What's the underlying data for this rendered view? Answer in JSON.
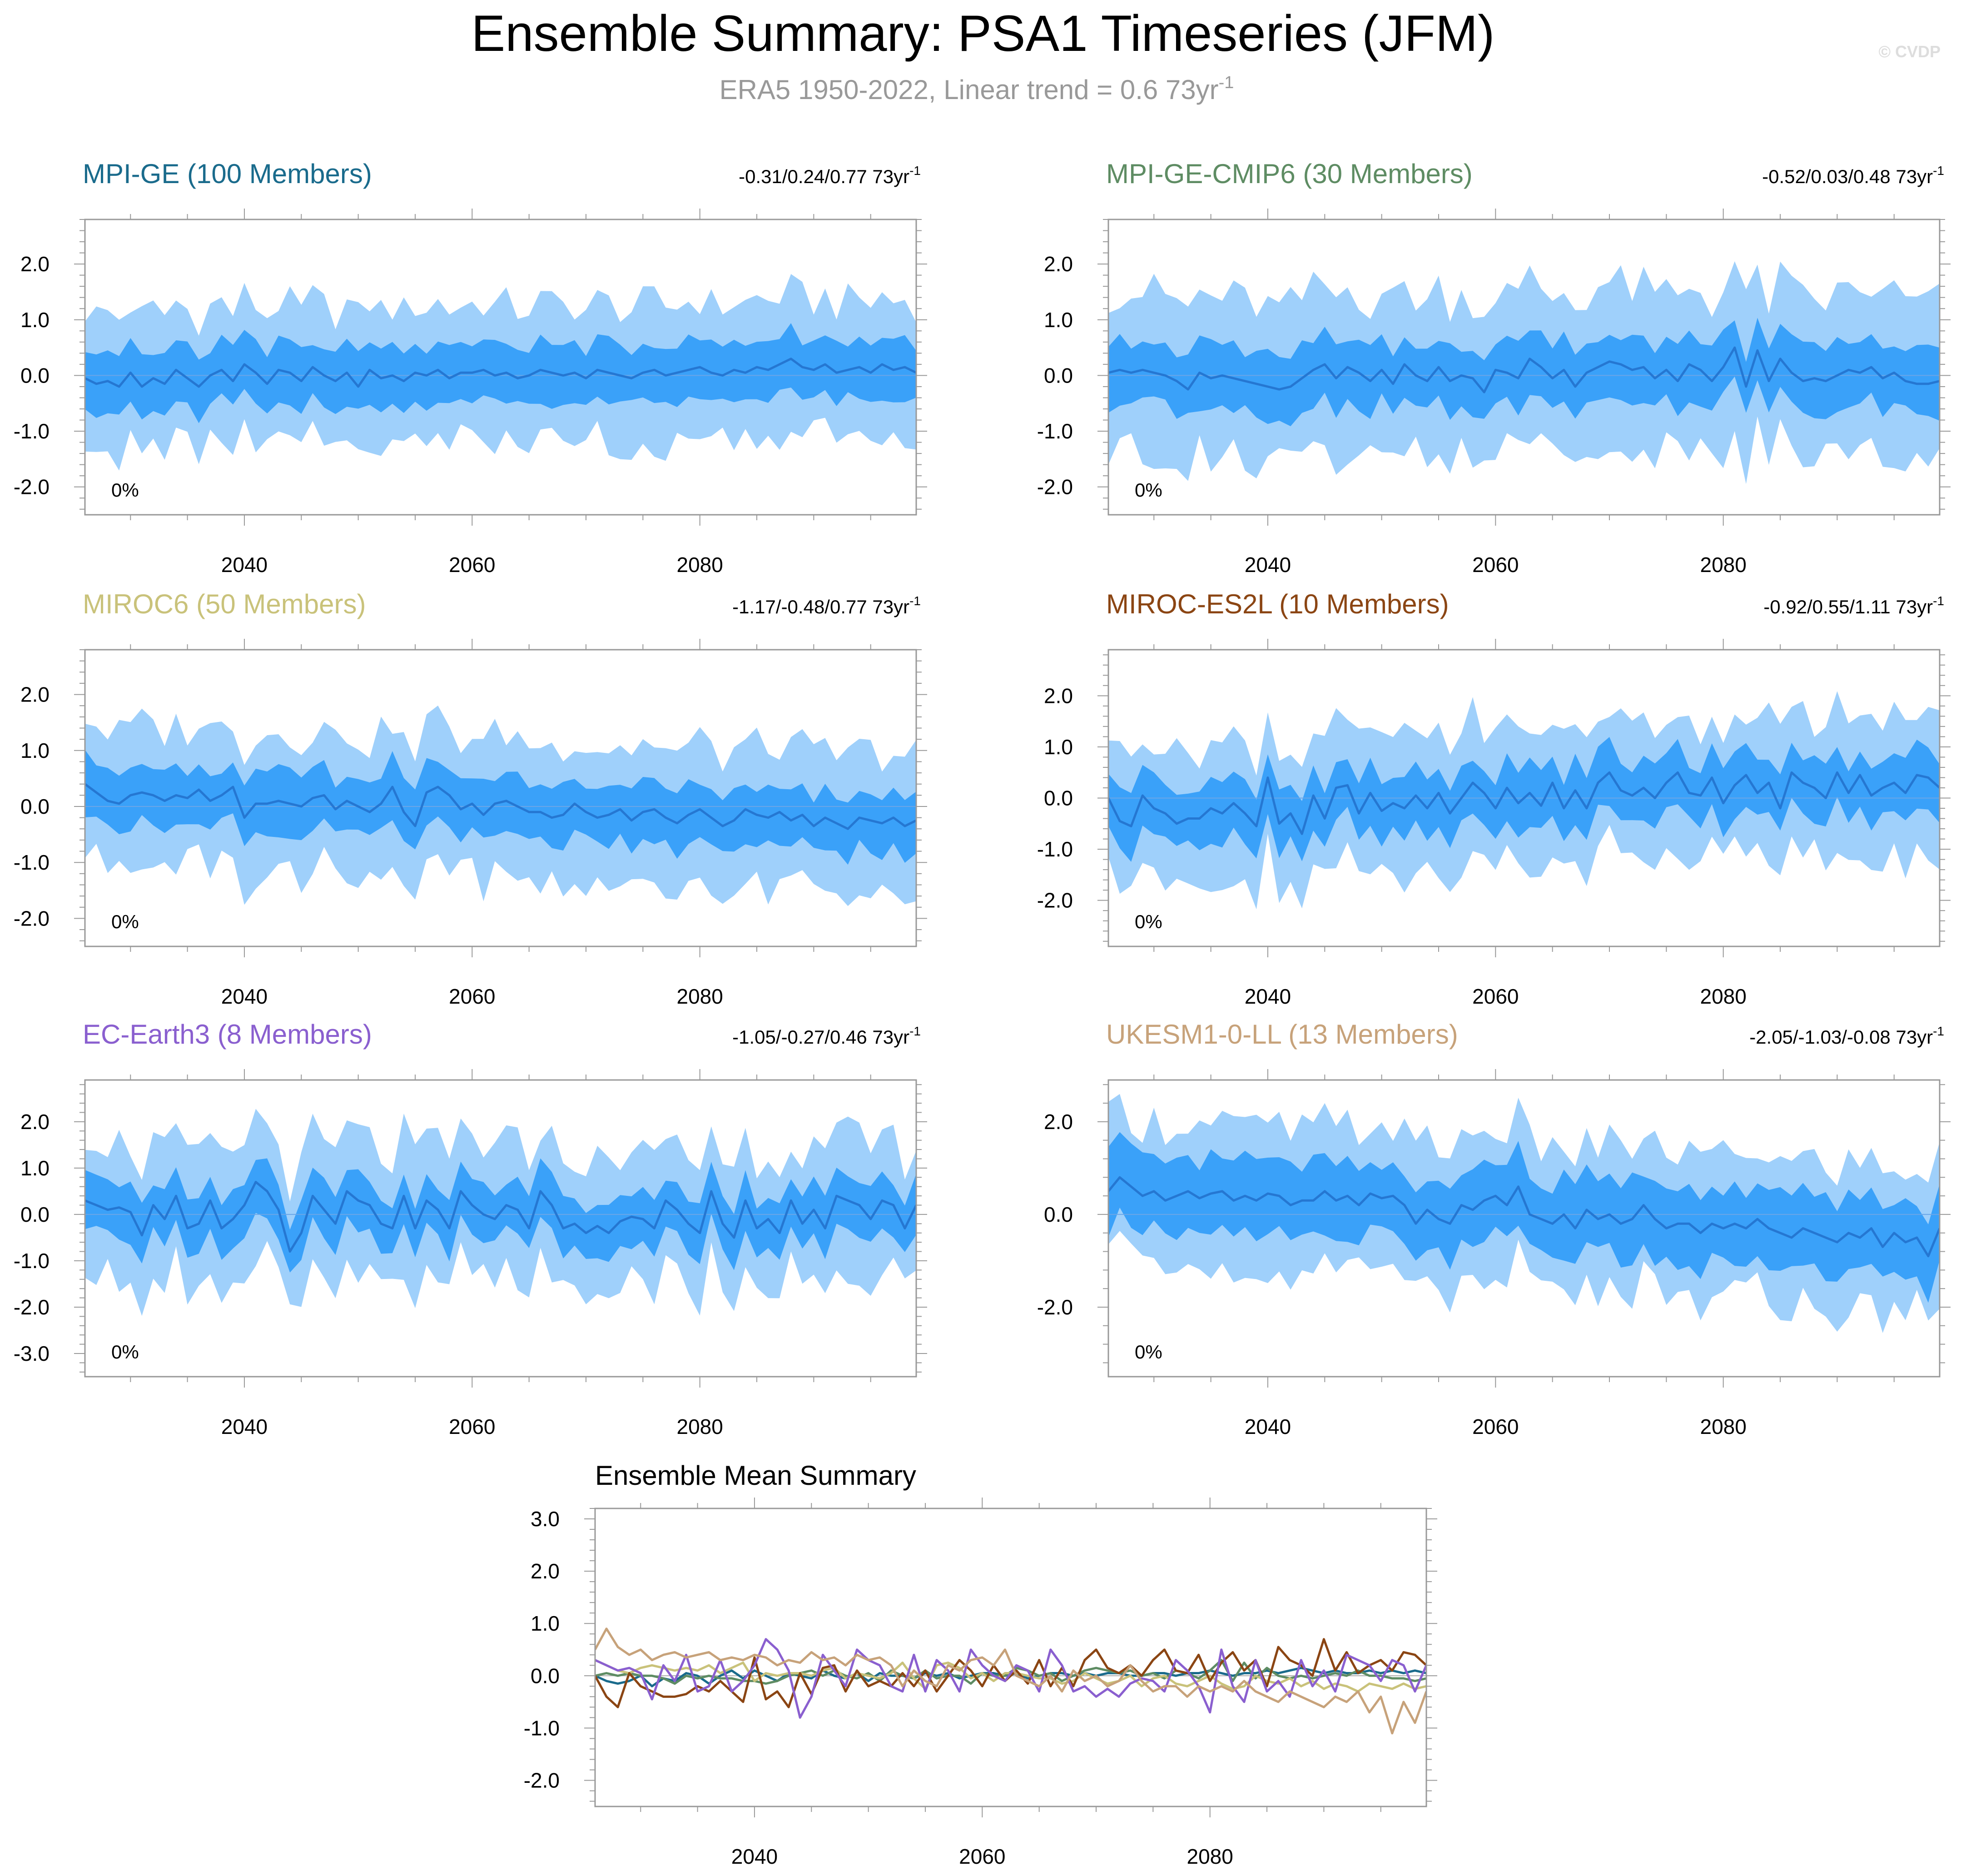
{
  "header": {
    "title": "Ensemble Summary: PSA1 Timeseries (JFM)",
    "subtitle": "ERA5 1950-2022, Linear trend = 0.6 73yr",
    "subtitle_sup": "-1",
    "watermark": "© CVDP"
  },
  "colors": {
    "outer_band": "#9fd0fb",
    "inner_band": "#3aa1f9",
    "median_line": "#2577d2",
    "zero_line": "#6aa6e8",
    "axis": "#999999",
    "text": "#000000"
  },
  "chart_data": [
    {
      "type": "area",
      "id": "mpi-ge",
      "title": "MPI-GE (100 Members)",
      "title_color": "#1a6b8c",
      "trend": "-0.31/0.24/0.77 73yr",
      "trend_sup": "-1",
      "percent_label": "0%",
      "x_start": 2026,
      "x_end": 2099,
      "xlim": [
        2026,
        2099
      ],
      "xticks": [
        2040,
        2060,
        2080
      ],
      "ylim": [
        -2.5,
        2.8
      ],
      "yticks": [
        2.0,
        1.0,
        0.0,
        -1.0,
        -2.0
      ],
      "ytick_labels": [
        "2.0",
        "1.0",
        "0.0",
        "-1.0",
        "-2.0"
      ],
      "median": [
        -0.05,
        -0.15,
        -0.1,
        -0.2,
        0.05,
        -0.2,
        -0.05,
        -0.15,
        0.1,
        -0.05,
        -0.2,
        0.0,
        0.1,
        -0.1,
        0.2,
        0.05,
        -0.15,
        0.1,
        0.05,
        -0.1,
        0.15,
        0.0,
        -0.1,
        0.05,
        -0.2,
        0.1,
        -0.05,
        0.0,
        -0.1,
        0.05,
        0.0,
        0.1,
        -0.05,
        0.05,
        0.05,
        0.1,
        0.0,
        0.05,
        -0.05,
        0.0,
        0.1,
        0.05,
        0.0,
        0.05,
        -0.05,
        0.1,
        0.05,
        0.0,
        -0.05,
        0.05,
        0.1,
        0.0,
        0.05,
        0.1,
        0.15,
        0.05,
        0.0,
        0.1,
        0.05,
        0.15,
        0.1,
        0.2,
        0.3,
        0.15,
        0.1,
        0.2,
        0.05,
        0.1,
        0.15,
        0.05,
        0.2,
        0.1,
        0.15,
        0.05
      ],
      "inner_half": 0.55,
      "outer_half": 1.2
    },
    {
      "type": "area",
      "id": "mpi-ge-cmip6",
      "title": "MPI-GE-CMIP6 (30 Members)",
      "title_color": "#5e8c63",
      "trend": "-0.52/0.03/0.48 73yr",
      "trend_sup": "-1",
      "percent_label": "0%",
      "x_start": 2026,
      "x_end": 2099,
      "xlim": [
        2026,
        2099
      ],
      "xticks": [
        2040,
        2060,
        2080
      ],
      "ylim": [
        -2.5,
        2.8
      ],
      "yticks": [
        2.0,
        1.0,
        0.0,
        -1.0,
        -2.0
      ],
      "ytick_labels": [
        "2.0",
        "1.0",
        "0.0",
        "-1.0",
        "-2.0"
      ],
      "median": [
        0.05,
        0.1,
        0.05,
        0.1,
        0.05,
        0.0,
        -0.1,
        -0.25,
        0.05,
        -0.05,
        0.0,
        -0.05,
        -0.1,
        -0.15,
        -0.2,
        -0.25,
        -0.2,
        -0.05,
        0.1,
        0.2,
        -0.05,
        0.15,
        0.05,
        -0.1,
        0.1,
        -0.15,
        0.2,
        0.0,
        -0.1,
        0.15,
        -0.1,
        0.0,
        -0.05,
        -0.3,
        0.1,
        0.05,
        -0.05,
        0.3,
        0.15,
        -0.05,
        0.1,
        -0.2,
        0.05,
        0.15,
        0.25,
        0.2,
        0.1,
        0.15,
        -0.05,
        0.1,
        -0.1,
        0.2,
        0.1,
        -0.1,
        0.15,
        0.5,
        -0.2,
        0.45,
        -0.1,
        0.3,
        0.05,
        -0.1,
        -0.05,
        -0.1,
        0.0,
        0.1,
        0.05,
        0.15,
        -0.05,
        0.05,
        -0.1,
        -0.15,
        -0.15,
        -0.1
      ],
      "inner_half": 0.6,
      "outer_half": 1.4
    },
    {
      "type": "area",
      "id": "miroc6",
      "title": "MIROC6 (50 Members)",
      "title_color": "#c9c27a",
      "trend": "-1.17/-0.48/0.77 73yr",
      "trend_sup": "-1",
      "percent_label": "0%",
      "x_start": 2026,
      "x_end": 2099,
      "xlim": [
        2026,
        2099
      ],
      "xticks": [
        2040,
        2060,
        2080
      ],
      "ylim": [
        -2.5,
        2.8
      ],
      "yticks": [
        2.0,
        1.0,
        0.0,
        -1.0,
        -2.0
      ],
      "ytick_labels": [
        "2.0",
        "1.0",
        "0.0",
        "-1.0",
        "-2.0"
      ],
      "median": [
        0.4,
        0.25,
        0.1,
        0.05,
        0.2,
        0.25,
        0.2,
        0.1,
        0.2,
        0.15,
        0.3,
        0.1,
        0.2,
        0.35,
        -0.2,
        0.05,
        0.05,
        0.1,
        0.05,
        0.0,
        0.15,
        0.2,
        -0.05,
        0.1,
        0.0,
        -0.1,
        0.05,
        0.35,
        -0.1,
        -0.35,
        0.25,
        0.35,
        0.2,
        -0.05,
        0.05,
        -0.15,
        0.05,
        0.1,
        0.0,
        -0.1,
        -0.1,
        -0.2,
        -0.15,
        0.05,
        -0.1,
        -0.2,
        -0.15,
        -0.05,
        -0.25,
        -0.1,
        -0.05,
        -0.2,
        -0.3,
        -0.15,
        -0.05,
        -0.2,
        -0.35,
        -0.25,
        -0.05,
        -0.15,
        -0.2,
        -0.1,
        -0.25,
        -0.15,
        -0.35,
        -0.2,
        -0.3,
        -0.4,
        -0.2,
        -0.25,
        -0.3,
        -0.2,
        -0.35,
        -0.25
      ],
      "inner_half": 0.55,
      "outer_half": 1.2
    },
    {
      "type": "area",
      "id": "miroc-es2l",
      "title": "MIROC-ES2L (10 Members)",
      "title_color": "#8b4513",
      "trend": "-0.92/0.55/1.11 73yr",
      "trend_sup": "-1",
      "percent_label": "0%",
      "x_start": 2026,
      "x_end": 2099,
      "xlim": [
        2026,
        2099
      ],
      "xticks": [
        2040,
        2060,
        2080
      ],
      "ylim": [
        -2.9,
        2.9
      ],
      "yticks": [
        2.0,
        1.0,
        0.0,
        -1.0,
        -2.0
      ],
      "ytick_labels": [
        "2.0",
        "1.0",
        "0.0",
        "-1.0",
        "-2.0"
      ],
      "median": [
        0.0,
        -0.45,
        -0.55,
        0.05,
        -0.2,
        -0.3,
        -0.5,
        -0.4,
        -0.4,
        -0.2,
        -0.3,
        -0.1,
        -0.3,
        -0.55,
        0.4,
        -0.5,
        -0.3,
        -0.7,
        0.05,
        -0.4,
        0.2,
        0.25,
        -0.3,
        0.1,
        -0.25,
        -0.1,
        -0.2,
        0.05,
        -0.2,
        0.1,
        -0.3,
        0.0,
        0.3,
        0.1,
        -0.2,
        0.2,
        -0.1,
        0.1,
        -0.15,
        0.3,
        -0.2,
        0.15,
        -0.2,
        0.3,
        0.5,
        0.15,
        0.05,
        0.2,
        0.0,
        0.3,
        0.5,
        0.1,
        0.05,
        0.4,
        -0.1,
        0.25,
        0.45,
        0.1,
        0.3,
        -0.2,
        0.5,
        0.3,
        0.2,
        0.0,
        0.5,
        0.1,
        0.45,
        0.05,
        0.2,
        0.3,
        0.1,
        0.45,
        0.4,
        0.2
      ],
      "inner_half": 0.6,
      "outer_half": 1.3
    },
    {
      "type": "area",
      "id": "ec-earth3",
      "title": "EC-Earth3 (8 Members)",
      "title_color": "#8a5fcf",
      "trend": "-1.05/-0.27/0.46 73yr",
      "trend_sup": "-1",
      "percent_label": "0%",
      "x_start": 2026,
      "x_end": 2099,
      "xlim": [
        2026,
        2099
      ],
      "xticks": [
        2040,
        2060,
        2080
      ],
      "ylim": [
        -3.5,
        2.9
      ],
      "yticks": [
        2.0,
        1.0,
        0.0,
        -1.0,
        -2.0,
        -3.0
      ],
      "ytick_labels": [
        "2.0",
        "1.0",
        "0.0",
        "-1.0",
        "-2.0",
        "-3.0"
      ],
      "median": [
        0.3,
        0.2,
        0.1,
        0.15,
        0.05,
        -0.45,
        0.2,
        -0.1,
        0.4,
        -0.3,
        -0.2,
        0.3,
        -0.3,
        -0.1,
        0.2,
        0.7,
        0.5,
        0.1,
        -0.8,
        -0.4,
        0.4,
        0.1,
        -0.2,
        0.5,
        0.3,
        0.2,
        -0.2,
        -0.3,
        0.4,
        -0.3,
        0.3,
        0.1,
        -0.3,
        0.5,
        0.2,
        0.0,
        -0.1,
        0.2,
        0.1,
        -0.3,
        0.5,
        0.2,
        -0.3,
        -0.2,
        -0.4,
        -0.25,
        -0.4,
        -0.15,
        -0.05,
        -0.1,
        -0.3,
        0.3,
        0.1,
        -0.2,
        -0.4,
        0.5,
        -0.2,
        -0.5,
        0.3,
        -0.3,
        -0.1,
        -0.4,
        0.3,
        -0.2,
        0.1,
        -0.3,
        0.4,
        0.3,
        0.2,
        -0.1,
        0.3,
        0.2,
        -0.3,
        0.2
      ],
      "inner_half": 0.6,
      "outer_half": 1.4
    },
    {
      "type": "area",
      "id": "ukesm1-0-ll",
      "title": "UKESM1-0-LL (13 Members)",
      "title_color": "#c7a27a",
      "trend": "-2.05/-1.03/-0.08 73yr",
      "trend_sup": "-1",
      "percent_label": "0%",
      "x_start": 2026,
      "x_end": 2099,
      "xlim": [
        2026,
        2099
      ],
      "xticks": [
        2040,
        2060,
        2080
      ],
      "ylim": [
        -3.5,
        2.9
      ],
      "yticks": [
        2.0,
        0.0,
        -2.0
      ],
      "ytick_labels": [
        "2.0",
        "0.0",
        "-2.0"
      ],
      "median": [
        0.5,
        0.8,
        0.6,
        0.4,
        0.5,
        0.3,
        0.4,
        0.5,
        0.35,
        0.45,
        0.5,
        0.3,
        0.4,
        0.3,
        0.45,
        0.4,
        0.2,
        0.3,
        0.3,
        0.5,
        0.3,
        0.4,
        0.2,
        0.45,
        0.35,
        0.4,
        0.2,
        -0.2,
        0.1,
        -0.1,
        -0.2,
        0.2,
        0.1,
        0.3,
        0.4,
        0.2,
        0.6,
        0.0,
        -0.1,
        -0.2,
        0.0,
        -0.3,
        0.1,
        -0.1,
        0.0,
        -0.2,
        -0.1,
        0.2,
        -0.1,
        -0.3,
        -0.2,
        -0.2,
        -0.4,
        -0.2,
        -0.3,
        -0.2,
        -0.3,
        -0.1,
        -0.3,
        -0.4,
        -0.5,
        -0.3,
        -0.4,
        -0.5,
        -0.6,
        -0.4,
        -0.5,
        -0.3,
        -0.7,
        -0.4,
        -0.6,
        -0.5,
        -0.9,
        -0.3
      ],
      "inner_half": 0.85,
      "outer_half": 1.5
    },
    {
      "type": "line",
      "id": "ensemble-mean",
      "title": "Ensemble Mean Summary",
      "x_start": 2026,
      "x_end": 2099,
      "xlim": [
        2026,
        2099
      ],
      "xticks": [
        2040,
        2060,
        2080
      ],
      "ylim": [
        -2.5,
        3.2
      ],
      "yticks": [
        3.0,
        2.0,
        1.0,
        0.0,
        -1.0,
        -2.0
      ],
      "ytick_labels": [
        "3.0",
        "2.0",
        "1.0",
        "0.0",
        "-1.0",
        "-2.0"
      ],
      "series": [
        {
          "name": "MPI-GE",
          "color": "#1a6b8c",
          "values": [
            0.0,
            -0.1,
            -0.15,
            -0.1,
            0.0,
            -0.2,
            -0.05,
            -0.1,
            0.05,
            0.0,
            -0.15,
            0.0,
            0.1,
            -0.05,
            0.1,
            0.0,
            -0.1,
            0.05,
            0.0,
            -0.05,
            0.1,
            0.0,
            -0.05,
            0.05,
            -0.1,
            0.05,
            0.0,
            0.0,
            -0.05,
            0.05,
            0.0,
            0.05,
            -0.05,
            0.0,
            0.05,
            0.05,
            0.0,
            0.05,
            -0.05,
            0.0,
            0.05,
            0.05,
            0.0,
            0.05,
            0.0,
            0.05,
            0.05,
            0.0,
            0.0,
            0.05,
            0.05,
            0.0,
            0.05,
            0.05,
            0.1,
            0.05,
            0.0,
            0.05,
            0.05,
            0.1,
            0.05,
            0.1,
            0.15,
            0.1,
            0.05,
            0.1,
            0.05,
            0.05,
            0.1,
            0.05,
            0.1,
            0.05,
            0.1,
            0.05
          ]
        },
        {
          "name": "MPI-GE-CMIP6",
          "color": "#5e8c63",
          "values": [
            0.0,
            0.05,
            0.0,
            0.05,
            0.0,
            0.0,
            -0.05,
            -0.15,
            0.0,
            -0.05,
            0.0,
            -0.05,
            -0.05,
            -0.1,
            -0.1,
            -0.15,
            -0.1,
            0.0,
            0.05,
            0.1,
            0.0,
            0.1,
            0.0,
            -0.05,
            0.05,
            -0.1,
            0.1,
            0.0,
            -0.05,
            0.1,
            -0.05,
            0.0,
            0.0,
            -0.15,
            0.05,
            0.0,
            0.0,
            0.15,
            0.1,
            0.0,
            0.05,
            -0.1,
            0.0,
            0.1,
            0.15,
            0.1,
            0.05,
            0.1,
            0.0,
            0.05,
            -0.05,
            0.1,
            0.05,
            -0.05,
            0.1,
            0.3,
            -0.1,
            0.25,
            -0.05,
            0.15,
            0.0,
            -0.05,
            0.0,
            -0.05,
            0.0,
            0.05,
            0.0,
            0.1,
            0.0,
            0.0,
            -0.05,
            -0.05,
            -0.1,
            -0.05
          ]
        },
        {
          "name": "MIROC6",
          "color": "#c9c27a",
          "values": [
            0.3,
            0.2,
            0.1,
            0.05,
            0.15,
            0.2,
            0.15,
            0.1,
            0.15,
            0.1,
            0.2,
            0.05,
            0.15,
            0.25,
            -0.1,
            0.05,
            0.0,
            0.05,
            0.05,
            0.0,
            0.1,
            0.15,
            -0.05,
            0.05,
            0.0,
            -0.05,
            0.05,
            0.25,
            -0.05,
            -0.25,
            0.2,
            0.25,
            0.15,
            -0.05,
            0.05,
            -0.1,
            0.05,
            0.05,
            0.0,
            -0.05,
            -0.05,
            -0.15,
            -0.1,
            0.05,
            -0.05,
            -0.15,
            -0.1,
            0.0,
            -0.2,
            -0.05,
            0.0,
            -0.15,
            -0.2,
            -0.1,
            0.0,
            -0.15,
            -0.25,
            -0.2,
            0.0,
            -0.1,
            -0.15,
            -0.05,
            -0.2,
            -0.1,
            -0.25,
            -0.15,
            -0.2,
            -0.3,
            -0.15,
            -0.2,
            -0.25,
            -0.15,
            -0.25,
            -0.2
          ]
        },
        {
          "name": "MIROC-ES2L",
          "color": "#8b4513",
          "values": [
            0.0,
            -0.4,
            -0.6,
            0.05,
            -0.2,
            -0.3,
            -0.4,
            -0.4,
            -0.35,
            -0.2,
            -0.3,
            -0.1,
            -0.3,
            -0.5,
            0.35,
            -0.45,
            -0.3,
            -0.6,
            0.05,
            -0.35,
            0.15,
            0.2,
            -0.3,
            0.1,
            -0.2,
            -0.1,
            -0.2,
            0.05,
            -0.2,
            0.1,
            -0.3,
            0.0,
            0.3,
            0.1,
            -0.2,
            0.2,
            -0.1,
            0.1,
            -0.15,
            0.3,
            -0.2,
            0.15,
            -0.2,
            0.3,
            0.5,
            0.15,
            0.05,
            0.2,
            0.0,
            0.3,
            0.5,
            0.1,
            0.05,
            0.4,
            -0.1,
            0.25,
            0.45,
            0.1,
            0.3,
            -0.2,
            0.55,
            0.3,
            0.2,
            0.0,
            0.7,
            0.1,
            0.45,
            0.05,
            0.2,
            0.3,
            0.1,
            0.45,
            0.4,
            0.2
          ]
        },
        {
          "name": "EC-Earth3",
          "color": "#8a5fcf",
          "values": [
            0.3,
            0.2,
            0.1,
            0.15,
            0.05,
            -0.45,
            0.2,
            -0.1,
            0.4,
            -0.3,
            -0.2,
            0.3,
            -0.3,
            -0.1,
            0.2,
            0.7,
            0.5,
            0.1,
            -0.8,
            -0.4,
            0.4,
            0.1,
            -0.2,
            0.5,
            0.3,
            0.2,
            -0.2,
            -0.3,
            0.4,
            -0.3,
            0.3,
            0.1,
            -0.3,
            0.5,
            0.2,
            0.0,
            -0.1,
            0.2,
            0.1,
            -0.3,
            0.5,
            0.2,
            -0.3,
            -0.2,
            -0.4,
            -0.25,
            -0.4,
            -0.15,
            -0.05,
            -0.1,
            -0.3,
            0.3,
            0.1,
            -0.2,
            -0.7,
            0.5,
            -0.2,
            -0.5,
            0.3,
            -0.3,
            -0.1,
            -0.4,
            0.3,
            -0.2,
            0.1,
            -0.3,
            0.4,
            0.3,
            0.2,
            -0.1,
            0.3,
            0.2,
            -0.3,
            0.2
          ]
        },
        {
          "name": "UKESM1-0-LL",
          "color": "#c7a27a",
          "values": [
            0.5,
            0.9,
            0.55,
            0.4,
            0.5,
            0.3,
            0.4,
            0.45,
            0.35,
            0.4,
            0.45,
            0.3,
            0.35,
            0.3,
            0.4,
            0.35,
            0.2,
            0.3,
            0.25,
            0.45,
            0.3,
            0.35,
            0.2,
            0.4,
            0.3,
            0.35,
            0.2,
            -0.2,
            0.1,
            -0.1,
            -0.2,
            0.2,
            0.1,
            0.3,
            0.35,
            0.2,
            0.5,
            0.0,
            -0.1,
            -0.2,
            0.0,
            -0.3,
            0.1,
            -0.1,
            0.0,
            -0.2,
            -0.1,
            0.2,
            -0.1,
            -0.3,
            -0.2,
            -0.2,
            -0.4,
            -0.2,
            -0.3,
            -0.2,
            -0.3,
            -0.1,
            -0.3,
            -0.4,
            -0.5,
            -0.3,
            -0.4,
            -0.5,
            -0.6,
            -0.4,
            -0.5,
            -0.3,
            -0.7,
            -0.4,
            -1.1,
            -0.5,
            -0.9,
            -0.3
          ]
        }
      ]
    }
  ]
}
